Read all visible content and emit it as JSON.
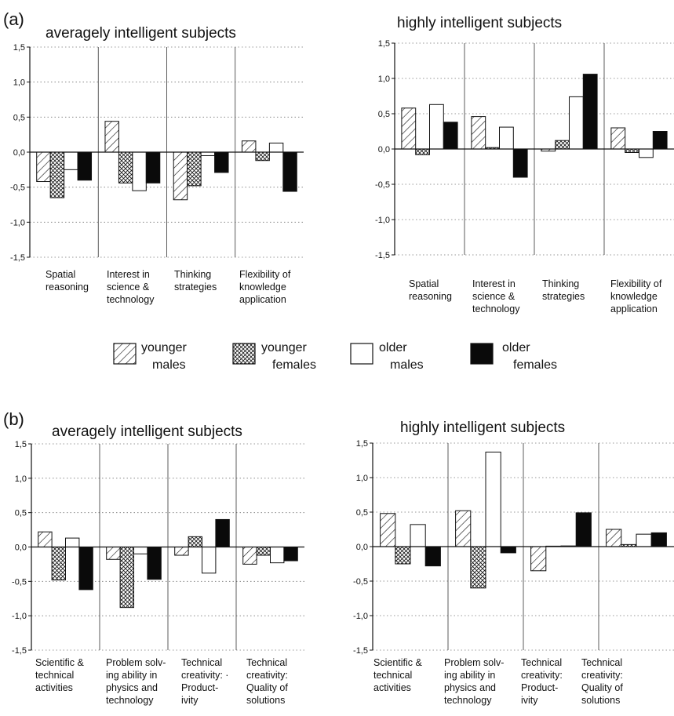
{
  "panel_labels": [
    "(a)",
    "(b)"
  ],
  "legend": [
    {
      "lines": [
        "younger",
        "males"
      ],
      "pattern": "hatch"
    },
    {
      "lines": [
        "younger",
        "females"
      ],
      "pattern": "cross"
    },
    {
      "lines": [
        "older",
        "males"
      ],
      "pattern": "white"
    },
    {
      "lines": [
        "older",
        "females"
      ],
      "pattern": "black"
    }
  ],
  "colors": {
    "ink": "#111111",
    "fill_white": "#ffffff",
    "fill_black": "#0a0a0a",
    "grid": "#777777"
  },
  "chart_data": [
    {
      "type": "bar",
      "panel": "(a)",
      "title": "averagely intelligent subjects",
      "ylim": [
        -1.5,
        1.5
      ],
      "yticks": [
        1.5,
        1.0,
        0.5,
        0.0,
        -0.5,
        -1.0,
        -1.5
      ],
      "ytick_labels": [
        "1,5",
        "1,0",
        "0,5",
        "0,0",
        "-0,5",
        "-1,0",
        "-1,5"
      ],
      "grid": "dotted horizontal",
      "categories": [
        [
          "Spatial",
          "reasoning"
        ],
        [
          "Interest in",
          "science &",
          "technology"
        ],
        [
          "Thinking",
          "strategies"
        ],
        [
          "Flexibility of",
          "knowledge",
          "application"
        ]
      ],
      "series": [
        {
          "name": "younger males",
          "values": [
            -0.42,
            0.44,
            -0.68,
            0.16
          ]
        },
        {
          "name": "younger females",
          "values": [
            -0.65,
            -0.44,
            -0.48,
            -0.12
          ]
        },
        {
          "name": "older males",
          "values": [
            -0.25,
            -0.55,
            -0.05,
            0.13
          ]
        },
        {
          "name": "older females",
          "values": [
            -0.4,
            -0.44,
            -0.29,
            -0.56
          ]
        }
      ]
    },
    {
      "type": "bar",
      "panel": "(a)",
      "title": "highly intelligent subjects",
      "ylim": [
        -1.5,
        1.5
      ],
      "yticks": [
        1.5,
        1.0,
        0.5,
        0.0,
        -0.5,
        -1.0,
        -1.5
      ],
      "ytick_labels": [
        "1,5",
        "1,0",
        "0,5",
        "0,0",
        "-0,5",
        "-1,0",
        "-1,5"
      ],
      "grid": "dotted horizontal",
      "categories": [
        [
          "Spatial",
          "reasoning"
        ],
        [
          "Interest in",
          "science &",
          "technology"
        ],
        [
          "Thinking",
          "strategies"
        ],
        [
          "Flexibility of",
          "knowledge",
          "application"
        ]
      ],
      "series": [
        {
          "name": "younger males",
          "values": [
            0.58,
            0.46,
            -0.03,
            0.3
          ]
        },
        {
          "name": "younger females",
          "values": [
            -0.08,
            0.02,
            0.12,
            -0.05
          ]
        },
        {
          "name": "older males",
          "values": [
            0.63,
            0.31,
            0.74,
            -0.12
          ]
        },
        {
          "name": "older females",
          "values": [
            0.38,
            -0.4,
            1.06,
            0.25
          ]
        }
      ]
    },
    {
      "type": "bar",
      "panel": "(b)",
      "title": "averagely intelligent subjects",
      "ylim": [
        -1.5,
        1.5
      ],
      "yticks": [
        1.5,
        1.0,
        0.5,
        0.0,
        -0.5,
        -1.0,
        -1.5
      ],
      "ytick_labels": [
        "1,5",
        "1,0",
        "0,5",
        "0,0",
        "-0,5",
        "-1,0",
        "-1,5"
      ],
      "grid": "dotted horizontal",
      "categories": [
        [
          "Scientific &",
          "technical",
          "activities"
        ],
        [
          "Problem solv-",
          "ing ability in",
          "physics and",
          "technology"
        ],
        [
          "Technical",
          "creativity: ·",
          "Product-",
          "ivity"
        ],
        [
          "Technical",
          "creativity:",
          "Quality of",
          "solutions"
        ]
      ],
      "series": [
        {
          "name": "younger males",
          "values": [
            0.22,
            -0.18,
            -0.12,
            -0.25
          ]
        },
        {
          "name": "younger females",
          "values": [
            -0.48,
            -0.88,
            0.15,
            -0.12
          ]
        },
        {
          "name": "older males",
          "values": [
            0.13,
            -0.1,
            -0.38,
            -0.23
          ]
        },
        {
          "name": "older females",
          "values": [
            -0.62,
            -0.47,
            0.4,
            -0.2
          ]
        }
      ]
    },
    {
      "type": "bar",
      "panel": "(b)",
      "title": "highly intelligent subjects",
      "ylim": [
        -1.5,
        1.5
      ],
      "yticks": [
        1.5,
        1.0,
        0.5,
        0.0,
        -0.5,
        -1.0,
        -1.5
      ],
      "ytick_labels": [
        "1,5",
        "1,0",
        "0,5",
        "0,0",
        "-0,5",
        "-1,0",
        "-1,5"
      ],
      "grid": "dotted horizontal",
      "categories": [
        [
          "Scientific &",
          "technical",
          "activities"
        ],
        [
          "Problem solv-",
          "ing ability in",
          "physics and",
          "technology"
        ],
        [
          "Technical",
          "creativity:",
          "Product-",
          "ivity"
        ],
        [
          "Technical",
          "creativity:",
          "Quality of",
          "solutions"
        ]
      ],
      "series": [
        {
          "name": "younger males",
          "values": [
            0.48,
            0.52,
            -0.35,
            0.25
          ]
        },
        {
          "name": "younger females",
          "values": [
            -0.25,
            -0.6,
            0.0,
            0.03
          ]
        },
        {
          "name": "older males",
          "values": [
            0.32,
            1.37,
            0.01,
            0.18
          ]
        },
        {
          "name": "older females",
          "values": [
            -0.28,
            -0.09,
            0.49,
            0.2
          ]
        }
      ]
    }
  ]
}
